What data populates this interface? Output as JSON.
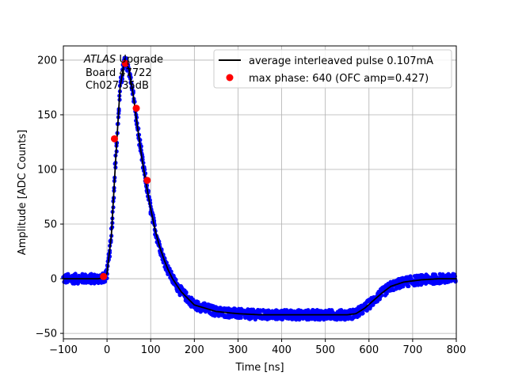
{
  "chart_data": {
    "type": "scatter",
    "xlabel": "Time [ns]",
    "ylabel": "Amplitude [ADC Counts]",
    "xlim": [
      -100,
      800
    ],
    "ylim": [
      -55,
      213
    ],
    "xticks": [
      -100,
      0,
      100,
      200,
      300,
      400,
      500,
      600,
      700,
      800
    ],
    "yticks": [
      -50,
      0,
      50,
      100,
      150,
      200
    ],
    "grid": true,
    "legend_placement": "top-right",
    "annotation": {
      "line1_italic": "ATLAS",
      "line1_rest": " Upgrade",
      "line2": "Board 47722",
      "line3": "Ch027 35dB"
    },
    "series": [
      {
        "name": "",
        "kind": "scatter-band",
        "color": "#0000ff",
        "description_source": "dense blue sample points around the average pulse",
        "x": [
          -100,
          -50,
          -20,
          -5,
          0,
          10,
          20,
          30,
          40,
          50,
          60,
          70,
          80,
          90,
          100,
          110,
          120,
          130,
          140,
          150,
          170,
          200,
          250,
          300,
          350,
          400,
          450,
          500,
          550,
          570,
          590,
          610,
          630,
          650,
          680,
          720,
          760,
          800
        ],
        "y": [
          0,
          0,
          0,
          1,
          5,
          40,
          110,
          175,
          200,
          192,
          168,
          138,
          110,
          86,
          64,
          45,
          30,
          18,
          8,
          0,
          -12,
          -24,
          -30,
          -32,
          -33,
          -33,
          -33,
          -33,
          -33,
          -32,
          -27,
          -20,
          -13,
          -7,
          -3,
          -1,
          0,
          0
        ]
      },
      {
        "name": "average interleaved pulse 0.107mA",
        "kind": "line",
        "color": "#000000",
        "x": [
          -100,
          -50,
          -20,
          -5,
          0,
          10,
          20,
          30,
          40,
          50,
          60,
          70,
          80,
          90,
          100,
          110,
          120,
          130,
          140,
          150,
          170,
          200,
          250,
          300,
          350,
          400,
          450,
          500,
          550,
          570,
          590,
          610,
          630,
          650,
          680,
          720,
          760,
          800
        ],
        "y": [
          0,
          0,
          0,
          1,
          5,
          40,
          110,
          175,
          200,
          192,
          168,
          138,
          110,
          86,
          64,
          45,
          30,
          18,
          8,
          0,
          -12,
          -24,
          -30,
          -32,
          -33,
          -33,
          -33,
          -33,
          -33,
          -32,
          -27,
          -20,
          -13,
          -7,
          -3,
          -1,
          0,
          0
        ]
      },
      {
        "name": "max phase: 640 (OFC amp=0.427)",
        "kind": "points",
        "color": "#ff0000",
        "x": [
          -8,
          17,
          42,
          67,
          92
        ],
        "y": [
          2,
          128,
          197,
          156,
          90
        ]
      }
    ]
  }
}
